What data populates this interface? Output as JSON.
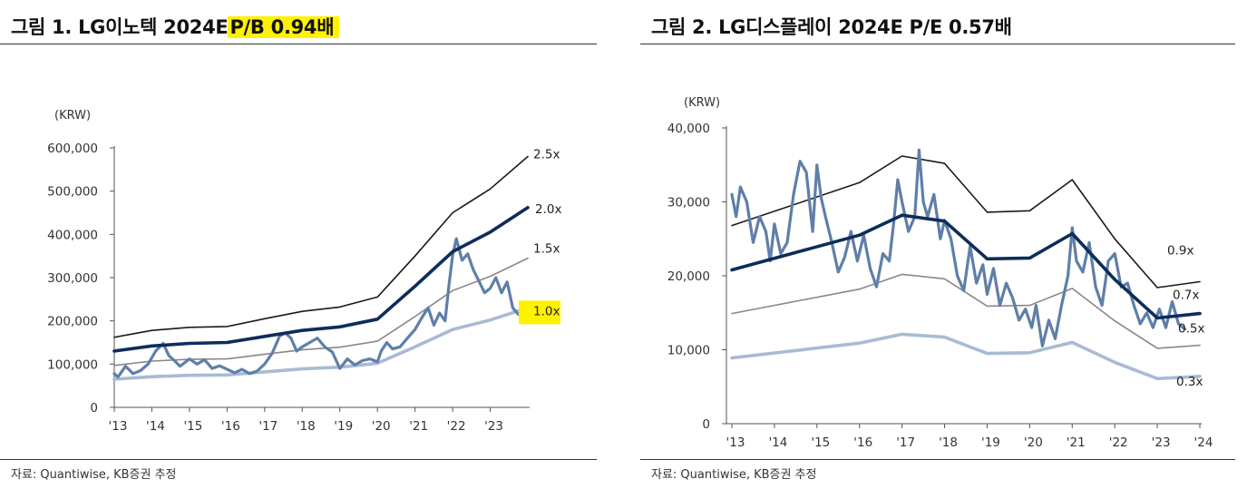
{
  "charts": [
    {
      "figure_label": "그림 1.",
      "title_main": "LG이노텍 2024E",
      "title_highlight": "P/B 0.94배",
      "source": "자료: Quantiwise, KB증권 추정"
    },
    {
      "figure_label": "그림 2.",
      "title_main": "LG디스플레이 2024E P/E 0.57배",
      "title_highlight": "",
      "source": "자료: Quantiwise, KB증권 추정"
    }
  ],
  "colors": {
    "band_top": "#1a1a1a",
    "band_main": "#0d2d5a",
    "band_mid": "#888888",
    "band_low": "#a9bbd3",
    "price": "#5f7fa8",
    "highlight": "#fff200"
  },
  "chart_data": [
    {
      "type": "line",
      "title": "그림 1. LG이노텍 2024E P/B 0.94배",
      "ylabel": "(KRW)",
      "ylim": [
        0,
        600000
      ],
      "yticks": [
        0,
        100000,
        200000,
        300000,
        400000,
        500000,
        600000
      ],
      "ytick_labels": [
        "0",
        "100,000",
        "200,000",
        "300,000",
        "400,000",
        "500,000",
        "600,000"
      ],
      "xlim": [
        2013,
        2024
      ],
      "xticks": [
        2013,
        2014,
        2015,
        2016,
        2017,
        2018,
        2019,
        2020,
        2021,
        2022,
        2023
      ],
      "xtick_labels": [
        "'13",
        "'14",
        "'15",
        "'16",
        "'17",
        "'18",
        "'19",
        "'20",
        "'21",
        "'22",
        "'23"
      ],
      "highlighted_label": "1.0x",
      "series": [
        {
          "name": "2.5x",
          "style": "top",
          "x": [
            2013,
            2014,
            2015,
            2016,
            2017,
            2018,
            2019,
            2020,
            2021,
            2022,
            2023,
            2024
          ],
          "values": [
            162000,
            178000,
            185000,
            187000,
            205000,
            222000,
            232000,
            255000,
            350000,
            450000,
            505000,
            580000
          ]
        },
        {
          "name": "2.0x",
          "style": "main",
          "x": [
            2013,
            2014,
            2015,
            2016,
            2017,
            2018,
            2019,
            2020,
            2021,
            2022,
            2023,
            2024
          ],
          "values": [
            130000,
            142000,
            148000,
            150000,
            164000,
            178000,
            186000,
            204000,
            280000,
            360000,
            405000,
            462000
          ]
        },
        {
          "name": "1.5x",
          "style": "mid",
          "x": [
            2013,
            2014,
            2015,
            2016,
            2017,
            2018,
            2019,
            2020,
            2021,
            2022,
            2023,
            2024
          ],
          "values": [
            97000,
            107000,
            111000,
            112000,
            123000,
            133000,
            139000,
            153000,
            210000,
            270000,
            303000,
            345000
          ]
        },
        {
          "name": "1.0x",
          "style": "low",
          "x": [
            2013,
            2014,
            2015,
            2016,
            2017,
            2018,
            2019,
            2020,
            2021,
            2022,
            2023,
            2024
          ],
          "values": [
            65000,
            71000,
            74000,
            75000,
            82000,
            89000,
            93000,
            102000,
            140000,
            180000,
            202000,
            230000
          ]
        },
        {
          "name": "",
          "style": "price",
          "x": [
            2013.0,
            2013.1,
            2013.3,
            2013.5,
            2013.7,
            2013.9,
            2014.1,
            2014.3,
            2014.45,
            2014.6,
            2014.75,
            2014.9,
            2015.0,
            2015.2,
            2015.4,
            2015.6,
            2015.8,
            2016.0,
            2016.2,
            2016.4,
            2016.6,
            2016.8,
            2017.0,
            2017.2,
            2017.4,
            2017.55,
            2017.7,
            2017.85,
            2018.0,
            2018.2,
            2018.4,
            2018.6,
            2018.8,
            2019.0,
            2019.2,
            2019.4,
            2019.6,
            2019.8,
            2020.0,
            2020.1,
            2020.25,
            2020.4,
            2020.6,
            2020.8,
            2021.0,
            2021.2,
            2021.35,
            2021.5,
            2021.65,
            2021.8,
            2021.9,
            2022.0,
            2022.1,
            2022.25,
            2022.4,
            2022.55,
            2022.7,
            2022.85,
            2023.0,
            2023.15,
            2023.3,
            2023.45,
            2023.6,
            2023.75
          ],
          "values": [
            78000,
            70000,
            95000,
            78000,
            85000,
            100000,
            130000,
            148000,
            120000,
            108000,
            95000,
            105000,
            112000,
            100000,
            110000,
            90000,
            96000,
            88000,
            80000,
            88000,
            78000,
            84000,
            100000,
            125000,
            165000,
            172000,
            160000,
            130000,
            140000,
            150000,
            160000,
            140000,
            128000,
            90000,
            112000,
            98000,
            108000,
            112000,
            105000,
            130000,
            150000,
            135000,
            140000,
            160000,
            180000,
            210000,
            230000,
            190000,
            218000,
            200000,
            280000,
            352000,
            390000,
            340000,
            355000,
            318000,
            292000,
            265000,
            275000,
            300000,
            265000,
            290000,
            230000,
            215000
          ]
        }
      ]
    },
    {
      "type": "line",
      "title": "그림 2. LG디스플레이 2024E P/E 0.57배",
      "ylabel": "(KRW)",
      "ylim": [
        0,
        40000
      ],
      "yticks": [
        0,
        10000,
        20000,
        30000,
        40000
      ],
      "ytick_labels": [
        "0",
        "10,000",
        "20,000",
        "30,000",
        "40,000"
      ],
      "xlim": [
        2013,
        2024
      ],
      "xticks": [
        2013,
        2014,
        2015,
        2016,
        2017,
        2018,
        2019,
        2020,
        2021,
        2022,
        2023,
        2024
      ],
      "xtick_labels": [
        "'13",
        "'14",
        "'15",
        "'16",
        "'17",
        "'18",
        "'19",
        "'20",
        "'21",
        "'22",
        "'23",
        "'24"
      ],
      "series": [
        {
          "name": "0.9x",
          "style": "top",
          "x": [
            2013,
            2016,
            2017,
            2018,
            2019,
            2020,
            2021,
            2022,
            2023,
            2024
          ],
          "values": [
            26800,
            32600,
            36200,
            35200,
            28600,
            28800,
            33000,
            25000,
            18400,
            19200
          ]
        },
        {
          "name": "0.7x",
          "style": "main",
          "x": [
            2013,
            2016,
            2017,
            2018,
            2019,
            2020,
            2021,
            2022,
            2023,
            2024
          ],
          "values": [
            20800,
            25500,
            28200,
            27400,
            22300,
            22400,
            25700,
            19500,
            14300,
            14900
          ]
        },
        {
          "name": "0.5x",
          "style": "mid",
          "x": [
            2013,
            2016,
            2017,
            2018,
            2019,
            2020,
            2021,
            2022,
            2023,
            2024
          ],
          "values": [
            14900,
            18200,
            20200,
            19600,
            15900,
            16000,
            18300,
            13900,
            10200,
            10600
          ]
        },
        {
          "name": "0.3x",
          "style": "low",
          "x": [
            2013,
            2016,
            2017,
            2018,
            2019,
            2020,
            2021,
            2022,
            2023,
            2024
          ],
          "values": [
            8900,
            10900,
            12100,
            11700,
            9500,
            9600,
            11000,
            8300,
            6100,
            6400
          ]
        },
        {
          "name": "",
          "style": "price",
          "x": [
            2013.0,
            2013.1,
            2013.2,
            2013.35,
            2013.5,
            2013.65,
            2013.8,
            2013.9,
            2014.0,
            2014.15,
            2014.3,
            2014.45,
            2014.6,
            2014.75,
            2014.9,
            2015.0,
            2015.1,
            2015.2,
            2015.35,
            2015.5,
            2015.65,
            2015.8,
            2015.95,
            2016.1,
            2016.25,
            2016.4,
            2016.55,
            2016.7,
            2016.8,
            2016.9,
            2017.0,
            2017.15,
            2017.3,
            2017.4,
            2017.5,
            2017.6,
            2017.75,
            2017.9,
            2018.0,
            2018.15,
            2018.3,
            2018.45,
            2018.6,
            2018.75,
            2018.9,
            2019.0,
            2019.15,
            2019.3,
            2019.45,
            2019.6,
            2019.75,
            2019.9,
            2020.05,
            2020.15,
            2020.3,
            2020.45,
            2020.6,
            2020.75,
            2020.9,
            2021.0,
            2021.1,
            2021.25,
            2021.4,
            2021.55,
            2021.7,
            2021.85,
            2022.0,
            2022.15,
            2022.3,
            2022.45,
            2022.6,
            2022.75,
            2022.9,
            2023.05,
            2023.2,
            2023.35,
            2023.5,
            2023.65
          ],
          "values": [
            31000,
            28000,
            32000,
            30000,
            24500,
            28000,
            26000,
            22000,
            27000,
            23000,
            24500,
            31000,
            35500,
            34000,
            26000,
            35000,
            30500,
            28000,
            24500,
            20500,
            22500,
            26000,
            22000,
            25500,
            21000,
            18500,
            23000,
            22000,
            27000,
            33000,
            30000,
            26000,
            28000,
            37000,
            30000,
            28000,
            31000,
            25000,
            27500,
            25000,
            20000,
            18000,
            24000,
            19000,
            21500,
            17500,
            21000,
            16000,
            19000,
            17000,
            14000,
            15500,
            13000,
            16000,
            10500,
            14000,
            11500,
            16000,
            20000,
            26500,
            22000,
            20500,
            24500,
            18500,
            16000,
            22000,
            23000,
            18500,
            19000,
            16000,
            13500,
            15000,
            13000,
            15500,
            13000,
            16500,
            13500,
            12800
          ]
        }
      ]
    }
  ]
}
